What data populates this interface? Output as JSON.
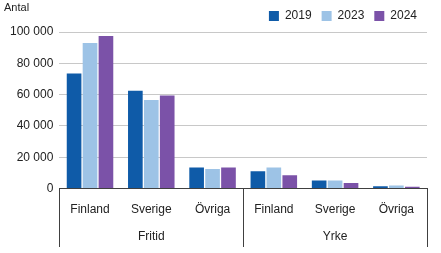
{
  "chart_data": {
    "type": "bar",
    "ylabel": "Antal",
    "categories": [
      "Finland",
      "Sverige",
      "Övriga",
      "Finland",
      "Sverige",
      "Övriga"
    ],
    "category_groups": [
      "Fritid",
      "Fritid",
      "Fritid",
      "Yrke",
      "Yrke",
      "Yrke"
    ],
    "series": [
      {
        "name": "2019",
        "color": "#0f5ba8",
        "values": [
          73500,
          62500,
          13500,
          11000,
          5200,
          1500
        ]
      },
      {
        "name": "2023",
        "color": "#9dc3e6",
        "values": [
          93000,
          56500,
          12500,
          13500,
          5200,
          2000
        ]
      },
      {
        "name": "2024",
        "color": "#7b52a8",
        "values": [
          97500,
          59500,
          13500,
          8500,
          3500,
          1200
        ]
      }
    ],
    "ylim": [
      0,
      100000
    ],
    "yticks": [
      0,
      {
        "value": 20000,
        "label": "20 000"
      },
      {
        "value": 40000,
        "label": "40 000"
      },
      {
        "value": 60000,
        "label": "60 000"
      },
      {
        "value": 80000,
        "label": "80 000"
      },
      {
        "value": 100000,
        "label": "100 000"
      }
    ],
    "grid": true,
    "legend": "upper right"
  }
}
